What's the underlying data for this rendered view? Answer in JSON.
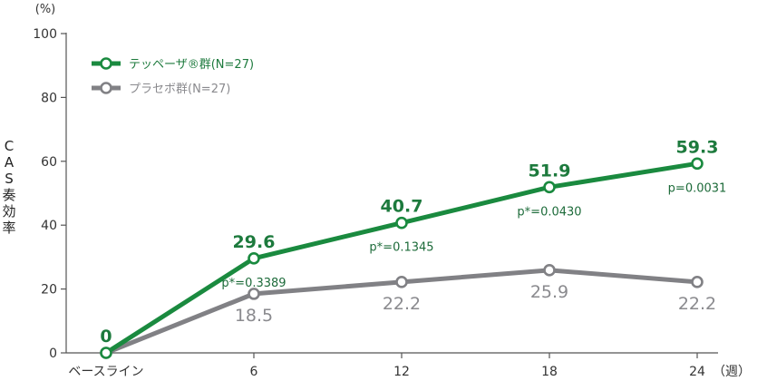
{
  "chart_data": {
    "type": "line",
    "categories": [
      "ベースライン",
      "6",
      "12",
      "18",
      "24"
    ],
    "x_unit_suffix": "（週）",
    "y_unit": "(%)",
    "ylabel": "CAS奏効率",
    "ylim": [
      0,
      100
    ],
    "yticks": [
      0,
      20,
      40,
      60,
      80,
      100
    ],
    "grid": false,
    "legend_position": "top-left",
    "series": [
      {
        "name": "テッペーザ®群(N=27)",
        "color": "#1a8a3f",
        "label_color": "#1d7a3d",
        "values": [
          0,
          29.6,
          40.7,
          51.9,
          59.3
        ],
        "data_labels": [
          "0",
          "29.6",
          "40.7",
          "51.9",
          "59.3"
        ]
      },
      {
        "name": "プラセボ群(N=27)",
        "color": "#818185",
        "label_color": "#8a8a8e",
        "values": [
          0,
          18.5,
          22.2,
          25.9,
          22.2
        ],
        "data_labels": [
          "",
          "18.5",
          "22.2",
          "25.9",
          "22.2"
        ]
      }
    ],
    "p_values": [
      "",
      "p*=0.3389",
      "p*=0.1345",
      "p*=0.0430",
      "p=0.0031"
    ]
  }
}
